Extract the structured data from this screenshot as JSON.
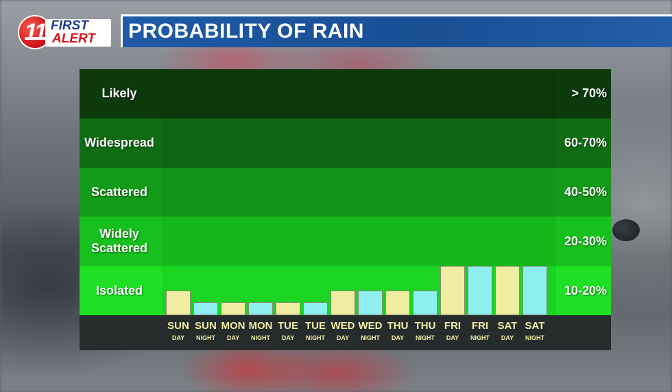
{
  "header": {
    "logo_number": "11",
    "logo_line1": "FIRST",
    "logo_line2": "ALERT",
    "title": "PROBABILITY OF RAIN"
  },
  "chart_data": {
    "type": "bar",
    "title": "PROBABILITY OF RAIN",
    "bands": [
      {
        "label": "Likely",
        "range": "> 70%",
        "color": "#0c3a0c"
      },
      {
        "label": "Widespread",
        "range": "60-70%",
        "color": "#0f6c13"
      },
      {
        "label": "Scattered",
        "range": "40-50%",
        "color": "#139a18"
      },
      {
        "label": "Widely Scattered",
        "range": "20-30%",
        "color": "#17c11d"
      },
      {
        "label": "Isolated",
        "range": "10-20%",
        "color": "#1ee024"
      }
    ],
    "categories": [
      {
        "day": "SUN",
        "part": "DAY"
      },
      {
        "day": "SUN",
        "part": "NIGHT"
      },
      {
        "day": "MON",
        "part": "DAY"
      },
      {
        "day": "MON",
        "part": "NIGHT"
      },
      {
        "day": "TUE",
        "part": "DAY"
      },
      {
        "day": "TUE",
        "part": "NIGHT"
      },
      {
        "day": "WED",
        "part": "DAY"
      },
      {
        "day": "WED",
        "part": "NIGHT"
      },
      {
        "day": "THU",
        "part": "DAY"
      },
      {
        "day": "THU",
        "part": "NIGHT"
      },
      {
        "day": "FRI",
        "part": "DAY"
      },
      {
        "day": "FRI",
        "part": "NIGHT"
      },
      {
        "day": "SAT",
        "part": "DAY"
      },
      {
        "day": "SAT",
        "part": "NIGHT"
      }
    ],
    "values_band_fraction": [
      0.5,
      0.27,
      0.27,
      0.27,
      0.27,
      0.27,
      0.5,
      0.5,
      0.5,
      0.5,
      1.0,
      1.0,
      1.0,
      1.0
    ],
    "colors": {
      "day": "#f0eca2",
      "night": "#8eeff0",
      "axis_background": "#262b2c",
      "tick_text": "#f3eea6"
    }
  }
}
